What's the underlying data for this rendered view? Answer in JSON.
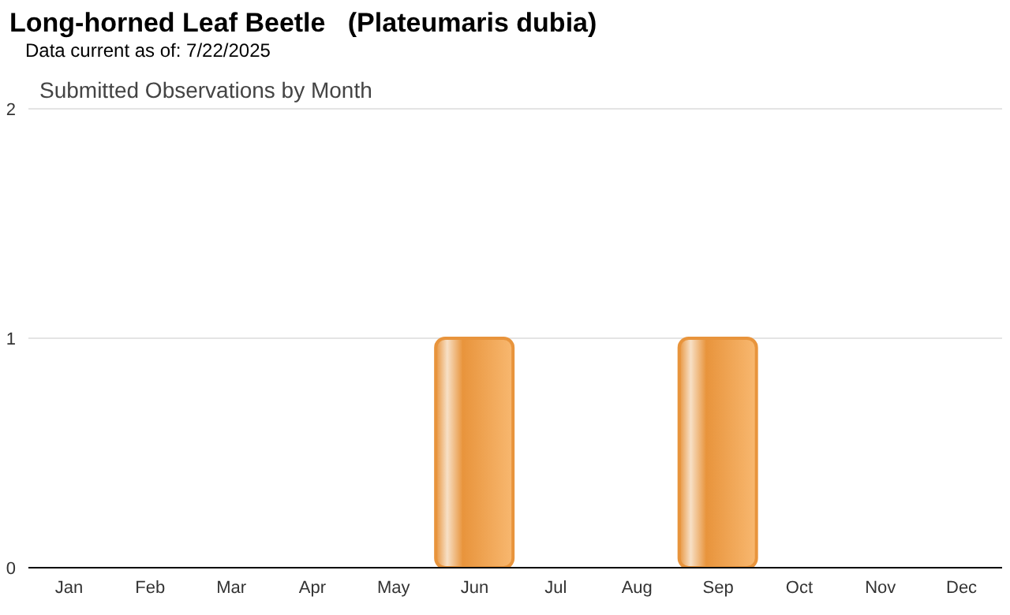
{
  "chart_data": {
    "type": "bar",
    "title": "Long-horned Leaf Beetle   (Plateumaris dubia)",
    "subtitle": "Submitted Observations by Month",
    "annotations": [
      "Data current as of: 7/22/2025"
    ],
    "categories": [
      "Jan",
      "Feb",
      "Mar",
      "Apr",
      "May",
      "Jun",
      "Jul",
      "Aug",
      "Sep",
      "Oct",
      "Nov",
      "Dec"
    ],
    "values": [
      0,
      0,
      0,
      0,
      0,
      1,
      0,
      0,
      1,
      0,
      0,
      0
    ],
    "color": "#e8943c",
    "ylim": [
      0,
      2
    ],
    "yticks": [
      0,
      1,
      2
    ],
    "grid": "y"
  }
}
